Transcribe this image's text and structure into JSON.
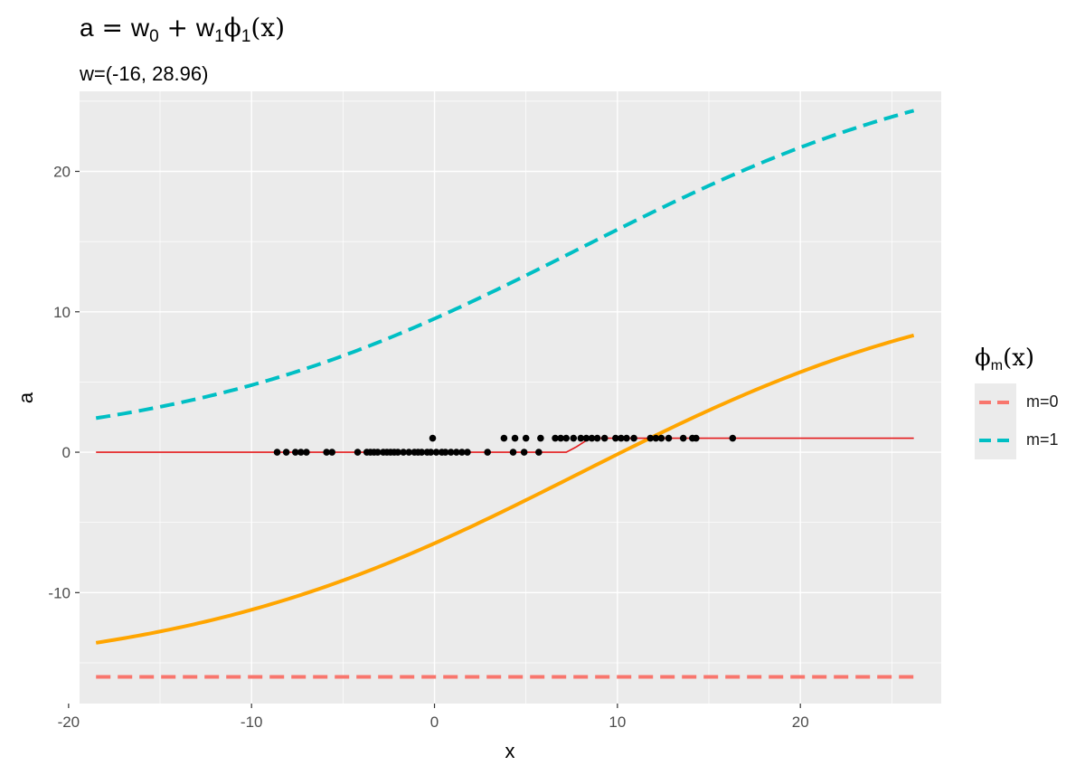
{
  "chart_data": {
    "type": "line",
    "title": {
      "lhs": "a",
      "eq": " = ",
      "w0": "w",
      "w0_sub": "0",
      "plus": " + ",
      "w1": "w",
      "w1_sub": "1",
      "phi": "ϕ",
      "phi_sub": "1",
      "arg": "(x)"
    },
    "subtitle": "w=(-16, 28.96)",
    "xlabel": "x",
    "ylabel": "a",
    "xlim": [
      -19.4,
      27.7
    ],
    "ylim": [
      -17.9,
      25.7
    ],
    "x_ticks": [
      -20,
      -10,
      0,
      10,
      20
    ],
    "x_tick_labels": [
      "-20",
      "-10",
      "0",
      "10",
      "20"
    ],
    "y_ticks": [
      -10,
      0,
      10,
      20
    ],
    "y_tick_labels": [
      "-10",
      "0",
      "10",
      "20"
    ],
    "grid": true,
    "legend": {
      "position": "right",
      "title": {
        "phi": "ϕ",
        "sub": "m",
        "arg": "(x)"
      },
      "entries": [
        {
          "label": "m=0",
          "color": "#F8766D",
          "linetype": "dashed"
        },
        {
          "label": "m=1",
          "color": "#00BFC4",
          "linetype": "dashed"
        }
      ]
    },
    "weights": [
      -16,
      28.96
    ],
    "basis_sigmoid": {
      "center": 7.9,
      "scale": 11.04
    },
    "x_range": [
      -18.5,
      26.2
    ],
    "series": [
      {
        "key": "phi0_scaled",
        "formula": "w0 * 1",
        "color": "#F8766D",
        "style": "dashed"
      },
      {
        "key": "phi1_scaled",
        "formula": "w1 * sigmoid((x - c) / s)",
        "color": "#00BFC4",
        "style": "dashed"
      },
      {
        "key": "activation",
        "formula": "w0 + w1 * sigmoid((x - c) / s)",
        "color": "#FFA500",
        "style": "solid"
      },
      {
        "key": "boundary",
        "formula": "step at x = 7.9",
        "color": "#E41A1C",
        "style": "solid"
      }
    ],
    "points": {
      "x": [
        -8.6,
        -8.1,
        -7.6,
        -7.3,
        -7.0,
        -5.9,
        -5.6,
        -4.2,
        -3.7,
        -3.5,
        -3.3,
        -3.1,
        -2.8,
        -2.6,
        -2.4,
        -2.2,
        -2.0,
        -1.7,
        -1.4,
        -1.1,
        -0.9,
        -0.7,
        -0.4,
        -0.2,
        0.1,
        0.4,
        0.6,
        0.9,
        1.2,
        1.5,
        1.8,
        2.9,
        4.3,
        4.9,
        5.7,
        3.8,
        4.4,
        5.0,
        5.8,
        6.6,
        6.9,
        7.2,
        7.6,
        8.0,
        8.3,
        8.6,
        8.9,
        9.3,
        9.9,
        10.2,
        10.5,
        10.9,
        11.8,
        12.1,
        12.4,
        12.8,
        13.6,
        14.1,
        14.3,
        16.3,
        -0.1
      ],
      "y": [
        0,
        0,
        0,
        0,
        0,
        0,
        0,
        0,
        0,
        0,
        0,
        0,
        0,
        0,
        0,
        0,
        0,
        0,
        0,
        0,
        0,
        0,
        0,
        0,
        0,
        0,
        0,
        0,
        0,
        0,
        0,
        0,
        0,
        0,
        0,
        1,
        1,
        1,
        1,
        1,
        1,
        1,
        1,
        1,
        1,
        1,
        1,
        1,
        1,
        1,
        1,
        1,
        1,
        1,
        1,
        1,
        1,
        1,
        1,
        1,
        1
      ]
    }
  }
}
